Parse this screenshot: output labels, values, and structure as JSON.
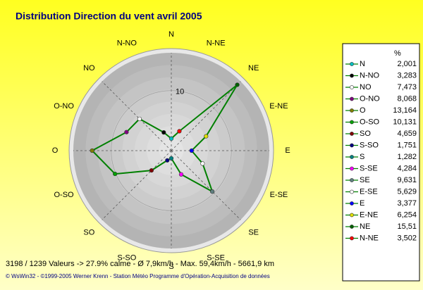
{
  "chart_data": {
    "type": "radar",
    "title": "Distribution Direction du vent   avril 2005",
    "categories": [
      "N",
      "N-NO",
      "NO",
      "O-NO",
      "O",
      "O-SO",
      "SO",
      "S-SO",
      "S",
      "S-SE",
      "SE",
      "E-SE",
      "E",
      "E-NE",
      "NE",
      "N-NE"
    ],
    "values": [
      2.001,
      3.283,
      7.473,
      8.068,
      13.164,
      10.131,
      4.659,
      1.751,
      1.282,
      4.284,
      9.631,
      5.629,
      3.377,
      6.254,
      15.51,
      3.502
    ],
    "value_labels": [
      "2,001",
      "3,283",
      "7,473",
      "8,068",
      "13,164",
      "10,131",
      "4,659",
      "1,751",
      "1,282",
      "4,284",
      "9,631",
      "5,629",
      "3,377",
      "6,254",
      "15,51",
      "3,502"
    ],
    "color": "#008000",
    "marker_colors": [
      "#00c0c0",
      "#000000",
      "#ffffff",
      "#800080",
      "#808000",
      "#00a000",
      "#800000",
      "#000080",
      "#008080",
      "#ff00ff",
      "#608080",
      "#ffffff",
      "#0000ff",
      "#e0e000",
      "#006000",
      "#ff0000"
    ],
    "rlim": [
      0,
      17
    ],
    "rticks": [
      10
    ],
    "legend_title": "%",
    "footer": "3198 / 1239 Valeurs  -> 27.9% calme   -   Ø 7,9km/h  -  Max. 59,4km/h   -    5661,9 km",
    "credit": "© WsWin32  -  ©1999-2005  Werner Krenn - Station Météo Programme d'Opération-Acquisition de données"
  }
}
